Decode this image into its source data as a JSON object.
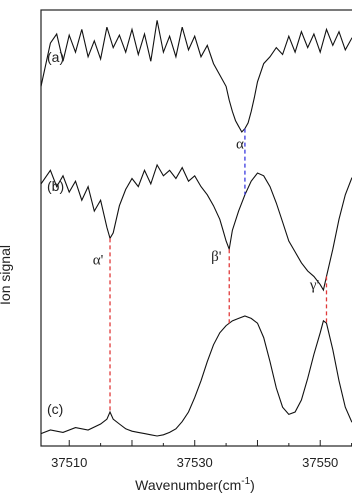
{
  "chart_data": {
    "type": "line",
    "xlabel": "Wavenumber(cm",
    "xlabel_sup": "-1",
    "xlabel_close": ")",
    "ylabel": "Ion signal",
    "xlim": [
      37505.5,
      37556.5
    ],
    "xticks": [
      37510,
      37530,
      37550
    ],
    "grid": false,
    "series": [
      {
        "name": "(a)",
        "x": [
          37505.5,
          37507,
          37508,
          37509,
          37510,
          37511,
          37512,
          37513,
          37514,
          37515,
          37516,
          37517,
          37518,
          37519,
          37520,
          37521,
          37522,
          37523,
          37524,
          37525,
          37526,
          37527,
          37528,
          37529,
          37530,
          37531,
          37532,
          37533,
          37534,
          37535,
          37535.5,
          37536,
          37536.5,
          37537,
          37537.5,
          37538,
          37538.5,
          37539,
          37539.5,
          37540,
          37540.5,
          37541,
          37542,
          37543,
          37544,
          37545,
          37546,
          37547,
          37548,
          37549,
          37550,
          37551,
          37552,
          37553,
          37554,
          37555,
          37556.5
        ],
        "y": [
          0.4,
          0.78,
          0.86,
          0.62,
          0.85,
          0.7,
          0.9,
          0.66,
          0.8,
          0.64,
          0.92,
          0.74,
          0.85,
          0.7,
          0.9,
          0.68,
          0.86,
          0.62,
          0.98,
          0.7,
          0.84,
          0.66,
          0.92,
          0.72,
          0.84,
          0.66,
          0.76,
          0.6,
          0.5,
          0.4,
          0.28,
          0.18,
          0.1,
          0.05,
          0.0,
          0.03,
          0.08,
          0.18,
          0.3,
          0.44,
          0.52,
          0.6,
          0.66,
          0.74,
          0.68,
          0.84,
          0.7,
          0.88,
          0.74,
          0.86,
          0.7,
          0.9,
          0.76,
          0.88,
          0.72,
          0.82,
          0.92
        ]
      },
      {
        "name": "(b)",
        "x": [
          37505.5,
          37507,
          37508,
          37509,
          37510,
          37511,
          37512,
          37513,
          37514,
          37515,
          37516,
          37516.5,
          37517,
          37518,
          37519,
          37520,
          37521,
          37522,
          37523,
          37524,
          37525,
          37526,
          37527,
          37528,
          37529,
          37530,
          37531,
          37532,
          37533,
          37534,
          37534.5,
          37535,
          37535.5,
          37536,
          37537,
          37538,
          37539,
          37540,
          37541,
          37542,
          37543,
          37544,
          37545,
          37546,
          37547,
          37548,
          37549,
          37550,
          37550.5,
          37551,
          37552,
          37553,
          37554,
          37555,
          37556.5
        ],
        "y": [
          0.78,
          0.88,
          0.76,
          0.84,
          0.72,
          0.8,
          0.66,
          0.76,
          0.58,
          0.66,
          0.46,
          0.38,
          0.42,
          0.62,
          0.74,
          0.82,
          0.76,
          0.88,
          0.78,
          0.92,
          0.84,
          0.88,
          0.82,
          0.9,
          0.8,
          0.84,
          0.76,
          0.7,
          0.62,
          0.52,
          0.44,
          0.36,
          0.3,
          0.44,
          0.58,
          0.7,
          0.8,
          0.86,
          0.84,
          0.76,
          0.64,
          0.5,
          0.36,
          0.28,
          0.2,
          0.14,
          0.1,
          0.04,
          0.0,
          0.1,
          0.3,
          0.52,
          0.7,
          0.82,
          0.92
        ]
      },
      {
        "name": "(c)",
        "x": [
          37505.5,
          37507,
          37509,
          37511,
          37513,
          37515,
          37516,
          37516.5,
          37517,
          37518,
          37519,
          37520,
          37521,
          37522,
          37523,
          37524,
          37525,
          37526,
          37527,
          37528,
          37529,
          37530,
          37531,
          37532,
          37533,
          37534,
          37535,
          37536,
          37537,
          37538,
          37539,
          37540,
          37541,
          37542,
          37543,
          37544,
          37545,
          37546,
          37547,
          37548,
          37549,
          37550,
          37550.5,
          37551,
          37552,
          37553,
          37554,
          37555,
          37556.5
        ],
        "y": [
          0.02,
          0.05,
          0.03,
          0.07,
          0.05,
          0.1,
          0.14,
          0.2,
          0.14,
          0.1,
          0.06,
          0.04,
          0.03,
          0.02,
          0.01,
          0.0,
          0.01,
          0.03,
          0.06,
          0.12,
          0.2,
          0.32,
          0.46,
          0.62,
          0.76,
          0.86,
          0.92,
          0.96,
          0.98,
          1.0,
          0.98,
          0.94,
          0.82,
          0.62,
          0.4,
          0.24,
          0.18,
          0.2,
          0.3,
          0.48,
          0.68,
          0.86,
          0.96,
          0.94,
          0.72,
          0.46,
          0.24,
          0.12,
          0.04
        ]
      }
    ],
    "annotations": [
      {
        "label": "α",
        "x": 37538,
        "color": "#3a3adf"
      },
      {
        "label": "α'",
        "x": 37516.5,
        "color": "#e03a3a"
      },
      {
        "label": "β'",
        "x": 37535.5,
        "color": "#e03a3a"
      },
      {
        "label": "γ'",
        "x": 37551,
        "color": "#e03a3a"
      }
    ]
  }
}
